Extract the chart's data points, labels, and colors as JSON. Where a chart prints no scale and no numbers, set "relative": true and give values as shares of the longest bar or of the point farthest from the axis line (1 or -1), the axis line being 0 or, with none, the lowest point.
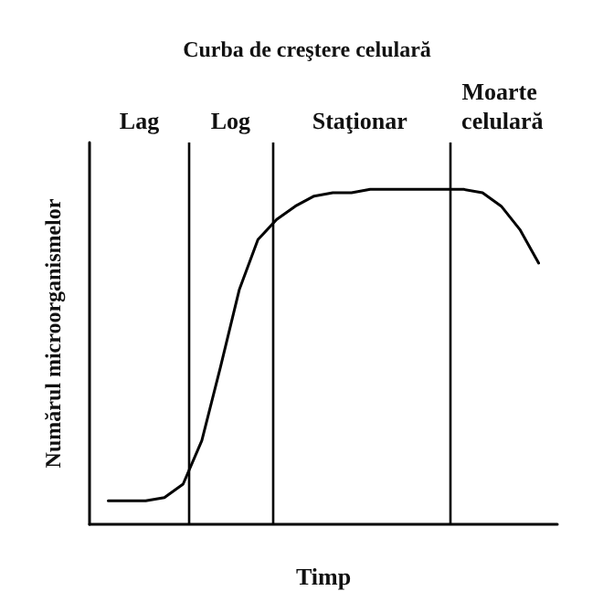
{
  "chart_data": {
    "type": "line",
    "title": "Curba de creştere celulară",
    "xlabel": "Timp",
    "ylabel": "Numărul microorganismelor",
    "relative": true,
    "marker": "none",
    "line_style": "solid",
    "categories": [
      null,
      null,
      null,
      null,
      null,
      null,
      null,
      null,
      null,
      null,
      null,
      null,
      null,
      null,
      null,
      null,
      null,
      null,
      null,
      null,
      null,
      null,
      null,
      null,
      null,
      null
    ],
    "series": [
      {
        "color": "#000000",
        "values": [
          null,
          0.07,
          0.07,
          0.07,
          0.08,
          0.12,
          0.25,
          0.47,
          0.7,
          0.85,
          0.91,
          0.95,
          0.98,
          0.99,
          0.99,
          1,
          1,
          1,
          1,
          1,
          1,
          0.99,
          0.95,
          0.88,
          0.78,
          null
        ]
      }
    ],
    "annotations": [
      "Lag",
      "Log",
      "Staţionar",
      "Moarte celulară"
    ]
  }
}
